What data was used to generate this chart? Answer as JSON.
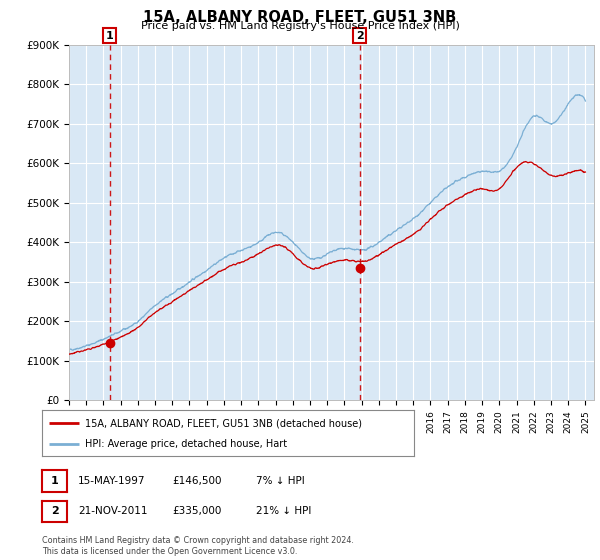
{
  "title": "15A, ALBANY ROAD, FLEET, GU51 3NB",
  "subtitle": "Price paid vs. HM Land Registry's House Price Index (HPI)",
  "legend_line1": "15A, ALBANY ROAD, FLEET, GU51 3NB (detached house)",
  "legend_line2": "HPI: Average price, detached house, Hart",
  "transaction1_label": "1",
  "transaction1_date": "15-MAY-1997",
  "transaction1_price": "£146,500",
  "transaction1_hpi": "7% ↓ HPI",
  "transaction1_year": 1997.37,
  "transaction1_value": 146500,
  "transaction2_label": "2",
  "transaction2_date": "21-NOV-2011",
  "transaction2_price": "£335,000",
  "transaction2_hpi": "21% ↓ HPI",
  "transaction2_year": 2011.89,
  "transaction2_value": 335000,
  "red_line_color": "#cc0000",
  "blue_line_color": "#7bafd4",
  "dashed_line_color": "#cc0000",
  "plot_bg_color": "#d9e8f5",
  "grid_color": "#ffffff",
  "ylim": [
    0,
    900000
  ],
  "xlim_start": 1995.0,
  "xlim_end": 2025.5,
  "footer": "Contains HM Land Registry data © Crown copyright and database right 2024.\nThis data is licensed under the Open Government Licence v3.0."
}
